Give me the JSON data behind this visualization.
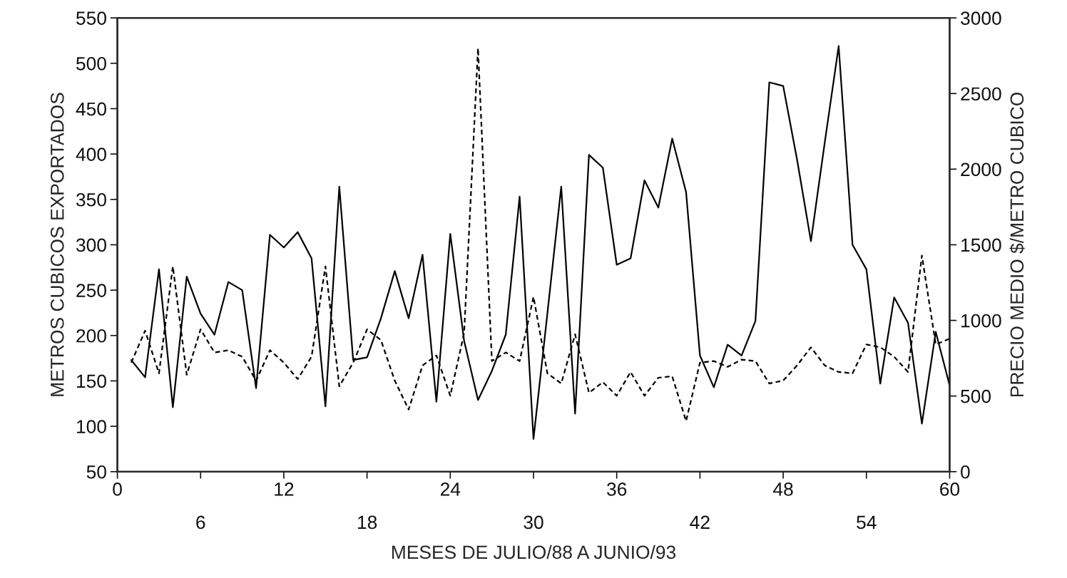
{
  "chart_data": {
    "type": "line",
    "xlabel": "MESES DE JULIO/88 A JUNIO/93",
    "ylabel": "METROS CUBICOS EXPORTADOS",
    "y2label": "PRECIO MEDIO $/METRO CUBICO",
    "x": [
      1,
      2,
      3,
      4,
      5,
      6,
      7,
      8,
      9,
      10,
      11,
      12,
      13,
      14,
      15,
      16,
      17,
      18,
      19,
      20,
      21,
      22,
      23,
      24,
      25,
      26,
      27,
      28,
      29,
      30,
      31,
      32,
      33,
      34,
      35,
      36,
      37,
      38,
      39,
      40,
      41,
      42,
      43,
      44,
      45,
      46,
      47,
      48,
      49,
      50,
      51,
      52,
      53,
      54,
      55,
      56,
      57,
      58,
      59,
      60
    ],
    "series": [
      {
        "color": "#000000",
        "line_style": "solid",
        "values": [
          173,
          154,
          273,
          121,
          265,
          224,
          201,
          259,
          250,
          142,
          311,
          297,
          314,
          285,
          122,
          364,
          173,
          176,
          219,
          271,
          219,
          289,
          127,
          312,
          194,
          129,
          161,
          201,
          353,
          86,
          224,
          364,
          114,
          399,
          385,
          278,
          285,
          371,
          341,
          417,
          358,
          178,
          143,
          190,
          178,
          216,
          479,
          475,
          394,
          304,
          413,
          519,
          300,
          273,
          147,
          242,
          214,
          103,
          204,
          145
        ]
      },
      {
        "color": "#000000",
        "line_style": "dashed",
        "axis": "y2",
        "values": [
          721,
          932,
          650,
          1357,
          640,
          941,
          788,
          803,
          760,
          602,
          803,
          721,
          612,
          760,
          1357,
          564,
          721,
          941,
          870,
          602,
          411,
          702,
          769,
          502,
          917,
          2800,
          731,
          788,
          731,
          1156,
          650,
          583,
          908,
          521,
          592,
          502,
          659,
          502,
          621,
          631,
          334,
          721,
          731,
          693,
          741,
          731,
          583,
          602,
          702,
          822,
          702,
          659,
          650,
          841,
          822,
          760,
          659,
          1429,
          841,
          879
        ]
      }
    ],
    "xlim": [
      0,
      60
    ],
    "xticks": [
      0,
      {
        "value": 6,
        "label": null
      },
      12,
      {
        "value": 18,
        "label": null
      },
      24,
      {
        "value": 30,
        "label": null
      },
      36,
      {
        "value": 42,
        "label": null
      },
      48,
      {
        "value": 54,
        "label": null
      },
      60
    ],
    "x2lim": [
      0,
      60
    ],
    "x2ticks": [
      6,
      18,
      30,
      42,
      54
    ],
    "ylim": [
      50,
      550
    ],
    "yticks": [
      50,
      100,
      150,
      200,
      250,
      300,
      350,
      400,
      450,
      500,
      550
    ],
    "y2lim": [
      0,
      3000
    ],
    "y2ticks": [
      0,
      500,
      1000,
      1500,
      2000,
      2500,
      3000
    ],
    "grid": false,
    "marker": "none"
  }
}
